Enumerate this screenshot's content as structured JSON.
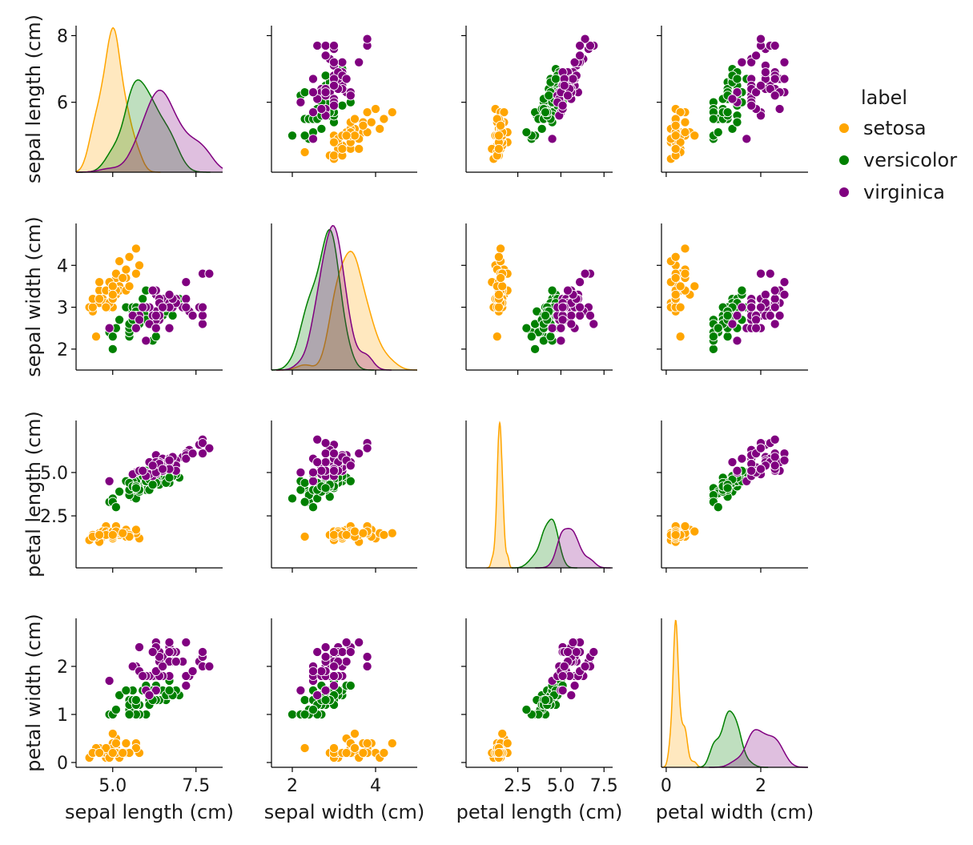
{
  "chart_data": {
    "type": "scatter",
    "subtype": "pairplot",
    "variables": [
      "sepal length (cm)",
      "sepal width (cm)",
      "petal length (cm)",
      "petal width (cm)"
    ],
    "diagonal": "kde",
    "legend": {
      "title": "label",
      "placement": "right",
      "entries": [
        {
          "name": "setosa",
          "color": "#FFA500"
        },
        {
          "name": "versicolor",
          "color": "#008000"
        },
        {
          "name": "virginica",
          "color": "#800080"
        }
      ]
    },
    "axes": [
      {
        "name": "sepal length (cm)",
        "lim": [
          3.9,
          8.3
        ],
        "ticks": [
          5.0,
          7.5
        ],
        "tick_labels": [
          "5.0",
          "7.5"
        ],
        "row_ticks": [
          6,
          8
        ],
        "row_tick_labels": [
          "6",
          "8"
        ]
      },
      {
        "name": "sepal width (cm)",
        "lim": [
          1.5,
          5.0
        ],
        "ticks": [
          2,
          4
        ],
        "tick_labels": [
          "2",
          "4"
        ],
        "row_ticks": [
          2,
          3,
          4
        ],
        "row_tick_labels": [
          "2",
          "3",
          "4"
        ]
      },
      {
        "name": "petal length (cm)",
        "lim": [
          -0.5,
          8.0
        ],
        "ticks": [
          2.5,
          5.0,
          7.5
        ],
        "tick_labels": [
          "2.5",
          "5.0",
          "7.5"
        ],
        "row_ticks": [
          2.5,
          5.0
        ],
        "row_tick_labels": [
          "2.5",
          "5.0"
        ]
      },
      {
        "name": "petal width (cm)",
        "lim": [
          -0.1,
          3.0
        ],
        "ticks": [
          0,
          2
        ],
        "tick_labels": [
          "0",
          "2"
        ],
        "row_ticks": [
          0,
          1,
          2
        ],
        "row_tick_labels": [
          "0",
          "1",
          "2"
        ]
      }
    ],
    "grid": false,
    "series": [
      {
        "name": "setosa",
        "color": "#FFA500",
        "points": [
          [
            5.1,
            3.5,
            1.4,
            0.2
          ],
          [
            4.9,
            3.0,
            1.4,
            0.2
          ],
          [
            4.7,
            3.2,
            1.3,
            0.2
          ],
          [
            4.6,
            3.1,
            1.5,
            0.2
          ],
          [
            5.0,
            3.6,
            1.4,
            0.2
          ],
          [
            5.4,
            3.9,
            1.7,
            0.4
          ],
          [
            4.6,
            3.4,
            1.4,
            0.3
          ],
          [
            5.0,
            3.4,
            1.5,
            0.2
          ],
          [
            4.4,
            2.9,
            1.4,
            0.2
          ],
          [
            4.9,
            3.1,
            1.5,
            0.1
          ],
          [
            5.4,
            3.7,
            1.5,
            0.2
          ],
          [
            4.8,
            3.4,
            1.6,
            0.2
          ],
          [
            4.8,
            3.0,
            1.4,
            0.1
          ],
          [
            4.3,
            3.0,
            1.1,
            0.1
          ],
          [
            5.8,
            4.0,
            1.2,
            0.2
          ],
          [
            5.7,
            4.4,
            1.5,
            0.4
          ],
          [
            5.4,
            3.9,
            1.3,
            0.4
          ],
          [
            5.1,
            3.5,
            1.4,
            0.3
          ],
          [
            5.7,
            3.8,
            1.7,
            0.3
          ],
          [
            5.1,
            3.8,
            1.5,
            0.3
          ],
          [
            5.4,
            3.4,
            1.7,
            0.2
          ],
          [
            5.1,
            3.7,
            1.5,
            0.4
          ],
          [
            4.6,
            3.6,
            1.0,
            0.2
          ],
          [
            5.1,
            3.3,
            1.7,
            0.5
          ],
          [
            4.8,
            3.4,
            1.9,
            0.2
          ],
          [
            5.0,
            3.0,
            1.6,
            0.2
          ],
          [
            5.0,
            3.4,
            1.6,
            0.4
          ],
          [
            5.2,
            3.5,
            1.5,
            0.2
          ],
          [
            5.2,
            3.4,
            1.4,
            0.2
          ],
          [
            4.7,
            3.2,
            1.6,
            0.2
          ],
          [
            4.8,
            3.1,
            1.6,
            0.2
          ],
          [
            5.4,
            3.4,
            1.5,
            0.4
          ],
          [
            5.2,
            4.1,
            1.5,
            0.1
          ],
          [
            5.5,
            4.2,
            1.4,
            0.2
          ],
          [
            4.9,
            3.1,
            1.5,
            0.2
          ],
          [
            5.0,
            3.2,
            1.2,
            0.2
          ],
          [
            5.5,
            3.5,
            1.3,
            0.2
          ],
          [
            4.9,
            3.6,
            1.4,
            0.1
          ],
          [
            4.4,
            3.0,
            1.3,
            0.2
          ],
          [
            5.1,
            3.4,
            1.5,
            0.2
          ],
          [
            5.0,
            3.5,
            1.3,
            0.3
          ],
          [
            4.5,
            2.3,
            1.3,
            0.3
          ],
          [
            4.4,
            3.2,
            1.3,
            0.2
          ],
          [
            5.0,
            3.5,
            1.6,
            0.6
          ],
          [
            5.1,
            3.8,
            1.9,
            0.4
          ],
          [
            4.8,
            3.0,
            1.4,
            0.3
          ],
          [
            5.1,
            3.8,
            1.6,
            0.2
          ],
          [
            4.6,
            3.2,
            1.4,
            0.2
          ],
          [
            5.3,
            3.7,
            1.5,
            0.2
          ],
          [
            5.0,
            3.3,
            1.4,
            0.2
          ]
        ]
      },
      {
        "name": "versicolor",
        "color": "#008000",
        "points": [
          [
            7.0,
            3.2,
            4.7,
            1.4
          ],
          [
            6.4,
            3.2,
            4.5,
            1.5
          ],
          [
            6.9,
            3.1,
            4.9,
            1.5
          ],
          [
            5.5,
            2.3,
            4.0,
            1.3
          ],
          [
            6.5,
            2.8,
            4.6,
            1.5
          ],
          [
            5.7,
            2.8,
            4.5,
            1.3
          ],
          [
            6.3,
            3.3,
            4.7,
            1.6
          ],
          [
            4.9,
            2.4,
            3.3,
            1.0
          ],
          [
            6.6,
            2.9,
            4.6,
            1.3
          ],
          [
            5.2,
            2.7,
            3.9,
            1.4
          ],
          [
            5.0,
            2.0,
            3.5,
            1.0
          ],
          [
            5.9,
            3.0,
            4.2,
            1.5
          ],
          [
            6.0,
            2.2,
            4.0,
            1.0
          ],
          [
            6.1,
            2.9,
            4.7,
            1.4
          ],
          [
            5.6,
            2.9,
            3.6,
            1.3
          ],
          [
            6.7,
            3.1,
            4.4,
            1.4
          ],
          [
            5.6,
            3.0,
            4.5,
            1.5
          ],
          [
            5.8,
            2.7,
            4.1,
            1.0
          ],
          [
            6.2,
            2.2,
            4.5,
            1.5
          ],
          [
            5.6,
            2.5,
            3.9,
            1.1
          ],
          [
            5.9,
            3.2,
            4.8,
            1.8
          ],
          [
            6.1,
            2.8,
            4.0,
            1.3
          ],
          [
            6.3,
            2.5,
            4.9,
            1.5
          ],
          [
            6.1,
            2.8,
            4.7,
            1.2
          ],
          [
            6.4,
            2.9,
            4.3,
            1.3
          ],
          [
            6.6,
            3.0,
            4.4,
            1.4
          ],
          [
            6.8,
            2.8,
            4.8,
            1.4
          ],
          [
            6.7,
            3.0,
            5.0,
            1.7
          ],
          [
            6.0,
            2.9,
            4.5,
            1.5
          ],
          [
            5.7,
            2.6,
            3.5,
            1.0
          ],
          [
            5.5,
            2.4,
            3.8,
            1.1
          ],
          [
            5.5,
            2.4,
            3.7,
            1.0
          ],
          [
            5.8,
            2.7,
            3.9,
            1.2
          ],
          [
            6.0,
            2.7,
            5.1,
            1.6
          ],
          [
            5.4,
            3.0,
            4.5,
            1.5
          ],
          [
            6.0,
            3.4,
            4.5,
            1.6
          ],
          [
            6.7,
            3.1,
            4.7,
            1.5
          ],
          [
            6.3,
            2.3,
            4.4,
            1.3
          ],
          [
            5.6,
            3.0,
            4.1,
            1.3
          ],
          [
            5.5,
            2.5,
            4.0,
            1.3
          ],
          [
            5.5,
            2.6,
            4.4,
            1.2
          ],
          [
            6.1,
            3.0,
            4.6,
            1.4
          ],
          [
            5.8,
            2.6,
            4.0,
            1.2
          ],
          [
            5.0,
            2.3,
            3.3,
            1.0
          ],
          [
            5.6,
            2.7,
            4.2,
            1.3
          ],
          [
            5.7,
            3.0,
            4.2,
            1.2
          ],
          [
            5.7,
            2.9,
            4.2,
            1.3
          ],
          [
            6.2,
            2.9,
            4.3,
            1.3
          ],
          [
            5.1,
            2.5,
            3.0,
            1.1
          ],
          [
            5.7,
            2.8,
            4.1,
            1.3
          ]
        ]
      },
      {
        "name": "virginica",
        "color": "#800080",
        "points": [
          [
            6.3,
            3.3,
            6.0,
            2.5
          ],
          [
            5.8,
            2.7,
            5.1,
            1.9
          ],
          [
            7.1,
            3.0,
            5.9,
            2.1
          ],
          [
            6.3,
            2.9,
            5.6,
            1.8
          ],
          [
            6.5,
            3.0,
            5.8,
            2.2
          ],
          [
            7.6,
            3.0,
            6.6,
            2.1
          ],
          [
            4.9,
            2.5,
            4.5,
            1.7
          ],
          [
            7.3,
            2.9,
            6.3,
            1.8
          ],
          [
            6.7,
            2.5,
            5.8,
            1.8
          ],
          [
            7.2,
            3.6,
            6.1,
            2.5
          ],
          [
            6.5,
            3.2,
            5.1,
            2.0
          ],
          [
            6.4,
            2.7,
            5.3,
            1.9
          ],
          [
            6.8,
            3.0,
            5.5,
            2.1
          ],
          [
            5.7,
            2.5,
            5.0,
            2.0
          ],
          [
            5.8,
            2.8,
            5.1,
            2.4
          ],
          [
            6.4,
            3.2,
            5.3,
            2.3
          ],
          [
            6.5,
            3.0,
            5.5,
            1.8
          ],
          [
            7.7,
            3.8,
            6.7,
            2.2
          ],
          [
            7.7,
            2.6,
            6.9,
            2.3
          ],
          [
            6.0,
            2.2,
            5.0,
            1.5
          ],
          [
            6.9,
            3.2,
            5.7,
            2.3
          ],
          [
            5.6,
            2.8,
            4.9,
            2.0
          ],
          [
            7.7,
            2.8,
            6.7,
            2.0
          ],
          [
            6.3,
            2.7,
            4.9,
            1.8
          ],
          [
            6.7,
            3.3,
            5.7,
            2.1
          ],
          [
            7.2,
            3.2,
            6.0,
            1.8
          ],
          [
            6.2,
            2.8,
            4.8,
            1.8
          ],
          [
            6.1,
            3.0,
            4.9,
            1.8
          ],
          [
            6.4,
            2.8,
            5.6,
            2.1
          ],
          [
            7.2,
            3.0,
            5.8,
            1.6
          ],
          [
            7.4,
            2.8,
            6.1,
            1.9
          ],
          [
            7.9,
            3.8,
            6.4,
            2.0
          ],
          [
            6.4,
            2.8,
            5.6,
            2.2
          ],
          [
            6.3,
            2.8,
            5.1,
            1.5
          ],
          [
            6.1,
            2.6,
            5.6,
            1.4
          ],
          [
            7.7,
            3.0,
            6.1,
            2.3
          ],
          [
            6.3,
            3.4,
            5.6,
            2.4
          ],
          [
            6.4,
            3.1,
            5.5,
            1.8
          ],
          [
            6.0,
            3.0,
            4.8,
            1.8
          ],
          [
            6.9,
            3.1,
            5.4,
            2.1
          ],
          [
            6.7,
            3.1,
            5.6,
            2.4
          ],
          [
            6.9,
            3.1,
            5.1,
            2.3
          ],
          [
            5.8,
            2.7,
            5.1,
            1.9
          ],
          [
            6.8,
            3.2,
            5.9,
            2.3
          ],
          [
            6.7,
            3.3,
            5.7,
            2.5
          ],
          [
            6.7,
            3.0,
            5.2,
            2.3
          ],
          [
            6.3,
            2.5,
            5.0,
            1.9
          ],
          [
            6.5,
            3.0,
            5.2,
            2.0
          ],
          [
            6.2,
            3.4,
            5.4,
            2.3
          ],
          [
            5.9,
            3.0,
            5.1,
            1.8
          ]
        ]
      }
    ]
  }
}
